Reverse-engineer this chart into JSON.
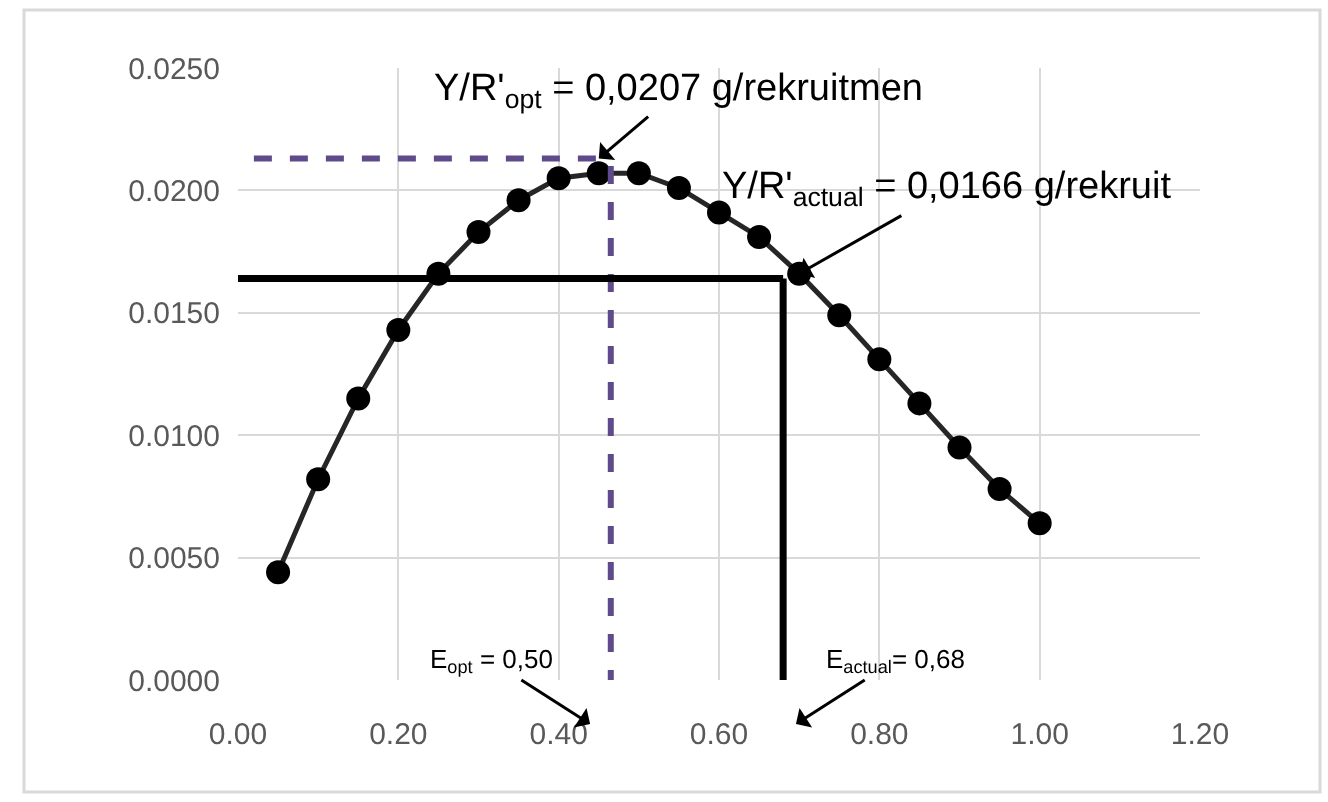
{
  "chart_data": {
    "type": "line",
    "x": [
      0.05,
      0.1,
      0.15,
      0.2,
      0.25,
      0.3,
      0.35,
      0.4,
      0.45,
      0.5,
      0.55,
      0.6,
      0.65,
      0.7,
      0.75,
      0.8,
      0.85,
      0.9,
      0.95,
      1.0
    ],
    "series": [
      {
        "color": "#262626",
        "values": [
          0.0044,
          0.0082,
          0.0115,
          0.0143,
          0.0166,
          0.0183,
          0.0196,
          0.0205,
          0.0207,
          0.0207,
          0.0201,
          0.0191,
          0.0181,
          0.0166,
          0.0149,
          0.0131,
          0.0113,
          0.0095,
          0.0078,
          0.0064
        ]
      }
    ],
    "xlim": [
      0,
      1.2
    ],
    "xticks": [
      {
        "value": 0,
        "label": "0.00"
      },
      {
        "value": 0.2,
        "label": "0.20"
      },
      {
        "value": 0.4,
        "label": "0.40"
      },
      {
        "value": 0.6,
        "label": "0.60"
      },
      {
        "value": 0.8,
        "label": "0.80"
      },
      {
        "value": 1,
        "label": "1.00"
      },
      {
        "value": 1.2,
        "label": "1.20"
      }
    ],
    "ylim": [
      0,
      0.025
    ],
    "yticks": [
      {
        "value": 0,
        "label": "0.0000"
      },
      {
        "value": 0.005,
        "label": "0.0050"
      },
      {
        "value": 0.01,
        "label": "0.0100"
      },
      {
        "value": 0.015,
        "label": "0.0150"
      },
      {
        "value": 0.02,
        "label": "0.0200"
      },
      {
        "value": 0.025,
        "label": "0.0250"
      }
    ],
    "grid": true,
    "marker": "circle",
    "line_style": "solid",
    "ref_lines": [
      {
        "axis": "y",
        "value": 0.0213,
        "color": "#5f4b8b",
        "line_style": "dashed"
      },
      {
        "axis": "x",
        "value": 0.465,
        "color": "#5f4b8b",
        "line_style": "dashed"
      },
      {
        "axis": "y",
        "value": 0.0164,
        "color": "#000000",
        "line_style": "solid"
      },
      {
        "axis": "x",
        "value": 0.68,
        "color": "#000000",
        "line_style": "solid"
      }
    ],
    "annotations": [
      {
        "text": "Y/R'$_{opt}$ = 0,0207 g/rekruitmen",
        "x": 0.45,
        "y": 0.0213
      },
      {
        "text": "Y/R'$_{actual}$ = 0,0166 g/rekruit",
        "x": 0.7,
        "y": 0.0166
      },
      "E$_{opt}$ = 0,50",
      "E$_{actual}$= 0,68"
    ]
  }
}
